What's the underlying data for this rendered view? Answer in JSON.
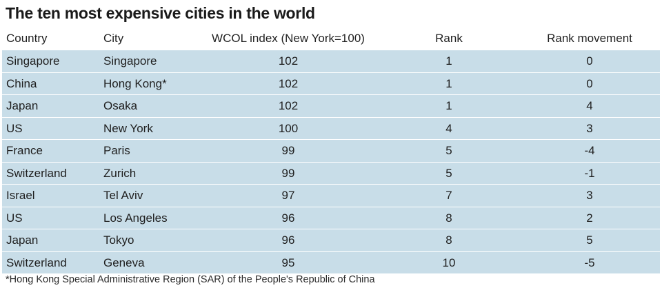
{
  "title": "The ten most expensive cities in the world",
  "headers": {
    "country": "Country",
    "city": "City",
    "index": "WCOL index (New York=100)",
    "rank": "Rank",
    "movement": "Rank movement"
  },
  "rows": [
    {
      "country": "Singapore",
      "city": "Singapore",
      "index": "102",
      "rank": "1",
      "movement": "0"
    },
    {
      "country": "China",
      "city": "Hong Kong*",
      "index": "102",
      "rank": "1",
      "movement": "0"
    },
    {
      "country": "Japan",
      "city": "Osaka",
      "index": "102",
      "rank": "1",
      "movement": "4"
    },
    {
      "country": "US",
      "city": "New York",
      "index": "100",
      "rank": "4",
      "movement": "3"
    },
    {
      "country": "France",
      "city": "Paris",
      "index": "99",
      "rank": "5",
      "movement": "-4"
    },
    {
      "country": "Switzerland",
      "city": "Zurich",
      "index": "99",
      "rank": "5",
      "movement": "-1"
    },
    {
      "country": "Israel",
      "city": "Tel Aviv",
      "index": "97",
      "rank": "7",
      "movement": "3"
    },
    {
      "country": "US",
      "city": "Los Angeles",
      "index": "96",
      "rank": "8",
      "movement": "2"
    },
    {
      "country": "Japan",
      "city": "Tokyo",
      "index": "96",
      "rank": "8",
      "movement": "5"
    },
    {
      "country": "Switzerland",
      "city": "Geneva",
      "index": "95",
      "rank": "10",
      "movement": "-5"
    }
  ],
  "footnote": "*Hong Kong Special Administrative Region (SAR) of the People's Republic of China",
  "colors": {
    "row_background": "#c8dde8",
    "text": "#1f1f1f"
  }
}
